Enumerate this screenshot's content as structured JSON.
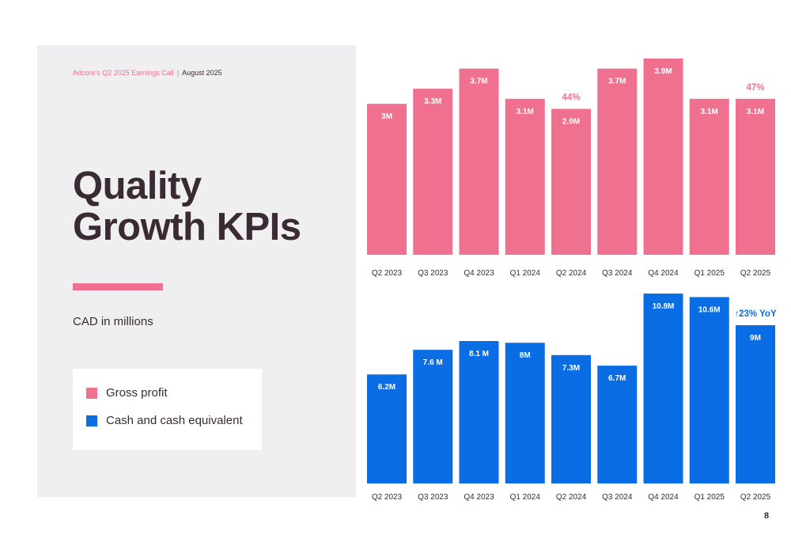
{
  "header": {
    "event": "Adcore's Q2 2025 Earnings Call",
    "separator": "|",
    "date": "August 2025"
  },
  "title": {
    "line1": "Quality",
    "line2": "Growth KPIs"
  },
  "unit_label": "CAD in millions",
  "legend": {
    "items": [
      {
        "label": "Gross profit",
        "color": "#f0718f"
      },
      {
        "label": "Cash and cash equivalent",
        "color": "#0b6de3"
      }
    ]
  },
  "page_number": "8",
  "colors": {
    "gross_profit": "#f0718f",
    "cash": "#0b6de3",
    "panel_bg": "#efeff1",
    "title_text": "#3a2a33"
  },
  "chart_data": [
    {
      "type": "bar",
      "series_name": "Gross profit",
      "categories": [
        "Q2 2023",
        "Q3 2023",
        "Q4 2023",
        "Q1 2024",
        "Q2 2024",
        "Q3 2024",
        "Q4 2024",
        "Q1 2025",
        "Q2 2025"
      ],
      "values": [
        3.0,
        3.3,
        3.7,
        3.1,
        2.9,
        3.7,
        3.9,
        3.1,
        3.1
      ],
      "data_labels": [
        "3M",
        "3.3M",
        "3.7M",
        "3.1M",
        "2.9M",
        "3.7M",
        "3.9M",
        "3.1M",
        "3.1M"
      ],
      "annotations": [
        {
          "category": "Q2 2024",
          "text": "44%"
        },
        {
          "category": "Q2 2025",
          "text": "47%"
        }
      ],
      "ylim": [
        0,
        3.9
      ],
      "color": "#f0718f",
      "grid": false
    },
    {
      "type": "bar",
      "series_name": "Cash and cash equivalent",
      "categories": [
        "Q2 2023",
        "Q3 2023",
        "Q4 2023",
        "Q1 2024",
        "Q2 2024",
        "Q3 2024",
        "Q4 2024",
        "Q1 2025",
        "Q2 2025"
      ],
      "values": [
        6.2,
        7.6,
        8.1,
        8.0,
        7.3,
        6.7,
        10.8,
        10.6,
        9.0
      ],
      "data_labels": [
        "6.2M",
        "7.6 M",
        "8.1 M",
        "8M",
        "7.3M",
        "6.7M",
        "10.8M",
        "10.6M",
        "9M"
      ],
      "annotations": [
        {
          "category": "Q2 2025",
          "text": "↑23% YoY"
        }
      ],
      "ylim": [
        0,
        10.8
      ],
      "color": "#0b6de3",
      "grid": false
    }
  ]
}
